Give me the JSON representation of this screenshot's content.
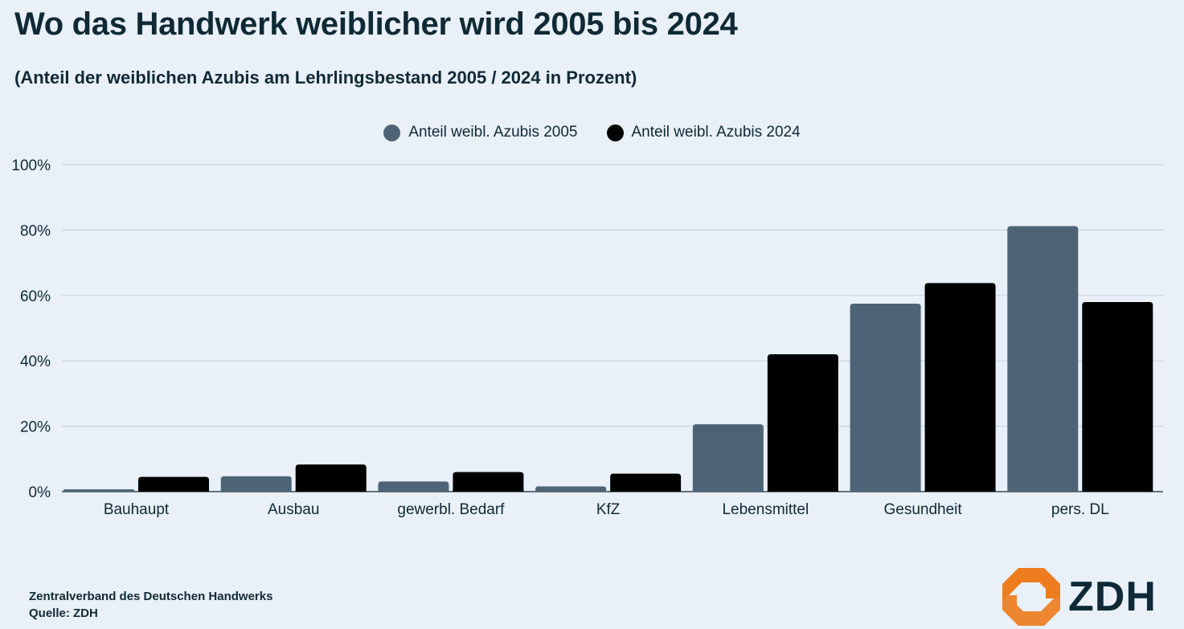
{
  "chart_data": {
    "type": "bar",
    "title": "Wo das Handwerk weiblicher wird 2005 bis 2024",
    "subtitle": "(Anteil der weiblichen Azubis am Lehrlingsbestand 2005 / 2024 in Prozent)",
    "categories": [
      "Bauhaupt",
      "Ausbau",
      "gewerbl. Bedarf",
      "KfZ",
      "Lebensmittel",
      "Gesundheit",
      "pers. DL"
    ],
    "series": [
      {
        "name": "Anteil weibl. Azubis 2005",
        "color": "#4e6476",
        "values": [
          0.7,
          4.7,
          3.1,
          1.6,
          20.6,
          57.5,
          81.2
        ]
      },
      {
        "name": "Anteil weibl. Azubis 2024",
        "color": "#000000",
        "values": [
          4.5,
          8.3,
          6.0,
          5.5,
          42.0,
          63.8,
          58.0
        ]
      }
    ],
    "ylim": [
      0,
      100
    ],
    "yticks": [
      "0%",
      "20%",
      "40%",
      "60%",
      "80%",
      "100%"
    ],
    "ytick_values": [
      0,
      20,
      40,
      60,
      80,
      100
    ],
    "grid": true,
    "legend_position": "top-center"
  },
  "footer": {
    "org": "Zentralverband des Deutschen Handwerks",
    "source": "Quelle: ZDH"
  },
  "logo": {
    "text": "ZDH",
    "color": "#ed7d1f"
  }
}
